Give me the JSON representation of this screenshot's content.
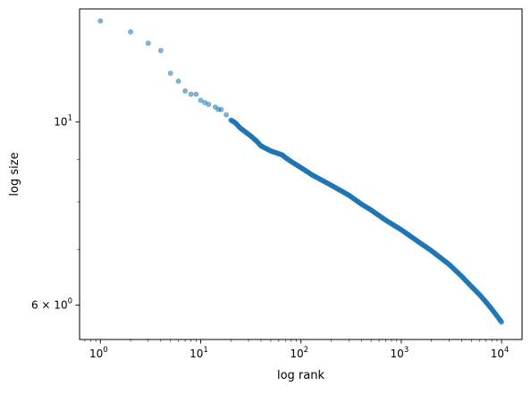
{
  "chart_data": {
    "type": "scatter",
    "xlabel": "log rank",
    "ylabel": "log size",
    "x_scale": "log",
    "y_scale": "log",
    "xlim": [
      0.62,
      16000
    ],
    "ylim": [
      5.45,
      13.7
    ],
    "grid": false,
    "x_ticks": [
      {
        "value": 1,
        "base": "10",
        "exp": "0"
      },
      {
        "value": 10,
        "base": "10",
        "exp": "1"
      },
      {
        "value": 100,
        "base": "10",
        "exp": "2"
      },
      {
        "value": 1000,
        "base": "10",
        "exp": "3"
      },
      {
        "value": 10000,
        "base": "10",
        "exp": "4"
      }
    ],
    "y_ticks": [
      {
        "value": 6,
        "base": "6 × 10",
        "exp": "0"
      },
      {
        "value": 10,
        "base": "10",
        "exp": "1"
      }
    ],
    "series": [
      {
        "color": "#1f77b4",
        "points": [
          [
            1,
            13.25
          ],
          [
            2,
            12.85
          ],
          [
            3,
            12.45
          ],
          [
            4,
            12.2
          ],
          [
            5,
            11.45
          ],
          [
            6,
            11.2
          ],
          [
            7,
            10.9
          ],
          [
            8,
            10.8
          ],
          [
            9,
            10.8
          ],
          [
            10,
            10.62
          ],
          [
            11,
            10.55
          ],
          [
            12,
            10.5
          ],
          [
            14,
            10.42
          ],
          [
            15,
            10.35
          ],
          [
            16,
            10.35
          ],
          [
            18,
            10.2
          ],
          [
            20,
            10.05
          ],
          [
            22,
            9.98
          ],
          [
            25,
            9.82
          ],
          [
            28,
            9.72
          ],
          [
            32,
            9.6
          ],
          [
            36,
            9.48
          ],
          [
            40,
            9.35
          ],
          [
            45,
            9.28
          ],
          [
            50,
            9.22
          ],
          [
            60,
            9.15
          ],
          [
            65,
            9.12
          ],
          [
            70,
            9.05
          ],
          [
            80,
            8.95
          ],
          [
            100,
            8.8
          ],
          [
            130,
            8.62
          ],
          [
            200,
            8.38
          ],
          [
            300,
            8.15
          ],
          [
            400,
            7.95
          ],
          [
            500,
            7.82
          ],
          [
            700,
            7.6
          ],
          [
            1000,
            7.4
          ],
          [
            1500,
            7.15
          ],
          [
            2000,
            6.98
          ],
          [
            3000,
            6.72
          ],
          [
            4000,
            6.5
          ],
          [
            5000,
            6.32
          ],
          [
            6000,
            6.18
          ],
          [
            7000,
            6.05
          ],
          [
            8000,
            5.93
          ],
          [
            9000,
            5.82
          ],
          [
            10000,
            5.72
          ]
        ]
      }
    ]
  }
}
